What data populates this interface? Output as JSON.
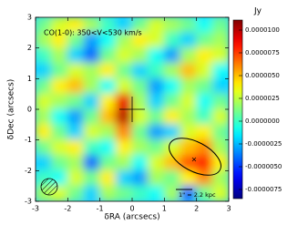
{
  "chart_data": {
    "type": "heatmap",
    "annotation": "CO(1-0): 350<V<530 km/s",
    "xlabel": "δRA (arcsecs)",
    "ylabel": "δDec (arcsecs)",
    "colorbar_label": "Jy",
    "scale_bar": "1\" = 2.2 kpc",
    "colormap": "jet",
    "xlim": [
      -3,
      3
    ],
    "ylim": [
      -3,
      3
    ],
    "xticks": [
      -3,
      -2,
      -1,
      0,
      1,
      2,
      3
    ],
    "yticks": [
      -3,
      -2,
      -1,
      0,
      1,
      2,
      3
    ],
    "clim": [
      -8.5e-06,
      1.11e-05
    ],
    "cticks": [
      {
        "value": -7.5e-06,
        "label": "-0.0000075"
      },
      {
        "value": -5e-06,
        "label": "-0.0000050"
      },
      {
        "value": -2.5e-06,
        "label": "-0.0000025"
      },
      {
        "value": 0,
        "label": "0.0000000"
      },
      {
        "value": 2.5e-06,
        "label": "0.0000025"
      },
      {
        "value": 5e-06,
        "label": "0.0000050"
      },
      {
        "value": 7.5e-06,
        "label": "0.0000075"
      },
      {
        "value": 1e-05,
        "label": "0.0000100"
      }
    ],
    "z": [
      [
        1e-06,
        3e-06,
        4e-06,
        2e-06,
        0,
        -2e-06,
        1e-06,
        3e-06,
        2e-06,
        1e-06,
        -1e-06,
        1e-06
      ],
      [
        2e-06,
        4e-06,
        1e-06,
        -3e-06,
        -1e-06,
        2e-06,
        4e-06,
        3e-06,
        0,
        -2e-06,
        1e-06,
        2e-06
      ],
      [
        0,
        2e-06,
        -2e-06,
        -4e-06,
        1e-06,
        3e-06,
        2e-06,
        -1e-06,
        -3e-06,
        2e-06,
        4e-06,
        3e-06
      ],
      [
        -2e-06,
        1e-06,
        3e-06,
        2e-06,
        4e-06,
        1e-06,
        -2e-06,
        0,
        2e-06,
        5e-06,
        3e-06,
        -1e-06
      ],
      [
        1e-06,
        4e-06,
        5e-06,
        2e-06,
        -1e-06,
        3e-06,
        1e-06,
        -3e-06,
        -1e-06,
        2e-06,
        1e-06,
        -2e-06
      ],
      [
        3e-06,
        2e-06,
        1e-06,
        -2e-06,
        4e-06,
        9e-06,
        2e-06,
        -2e-06,
        1e-06,
        3e-06,
        -1e-06,
        1e-06
      ],
      [
        2e-06,
        -1e-06,
        -3e-06,
        1e-06,
        5e-06,
        1e-05,
        3e-06,
        1e-06,
        4e-06,
        2e-06,
        0,
        3e-06
      ],
      [
        4e-06,
        1e-06,
        -2e-06,
        3e-06,
        2e-06,
        6e-06,
        1e-06,
        -3e-06,
        -2e-06,
        3e-06,
        4e-06,
        1e-06
      ],
      [
        1e-06,
        3e-06,
        4e-06,
        0,
        -1e-06,
        4e-06,
        2e-06,
        1e-06,
        3e-06,
        5e-06,
        6e-06,
        2e-06
      ],
      [
        -2e-06,
        1e-06,
        2e-06,
        -4e-06,
        1e-06,
        2e-06,
        -1e-06,
        3e-06,
        5e-06,
        7e-06,
        8e-06,
        4e-06
      ],
      [
        0,
        -1e-06,
        3e-06,
        1e-06,
        4e-06,
        -2e-06,
        -3e-06,
        2e-06,
        1e-06,
        4e-06,
        6e-06,
        2e-06
      ],
      [
        2e-06,
        3e-06,
        1e-06,
        -2e-06,
        2e-06,
        1e-06,
        0,
        -1e-06,
        2e-06,
        -4e-06,
        1e-06,
        3e-06
      ]
    ]
  }
}
